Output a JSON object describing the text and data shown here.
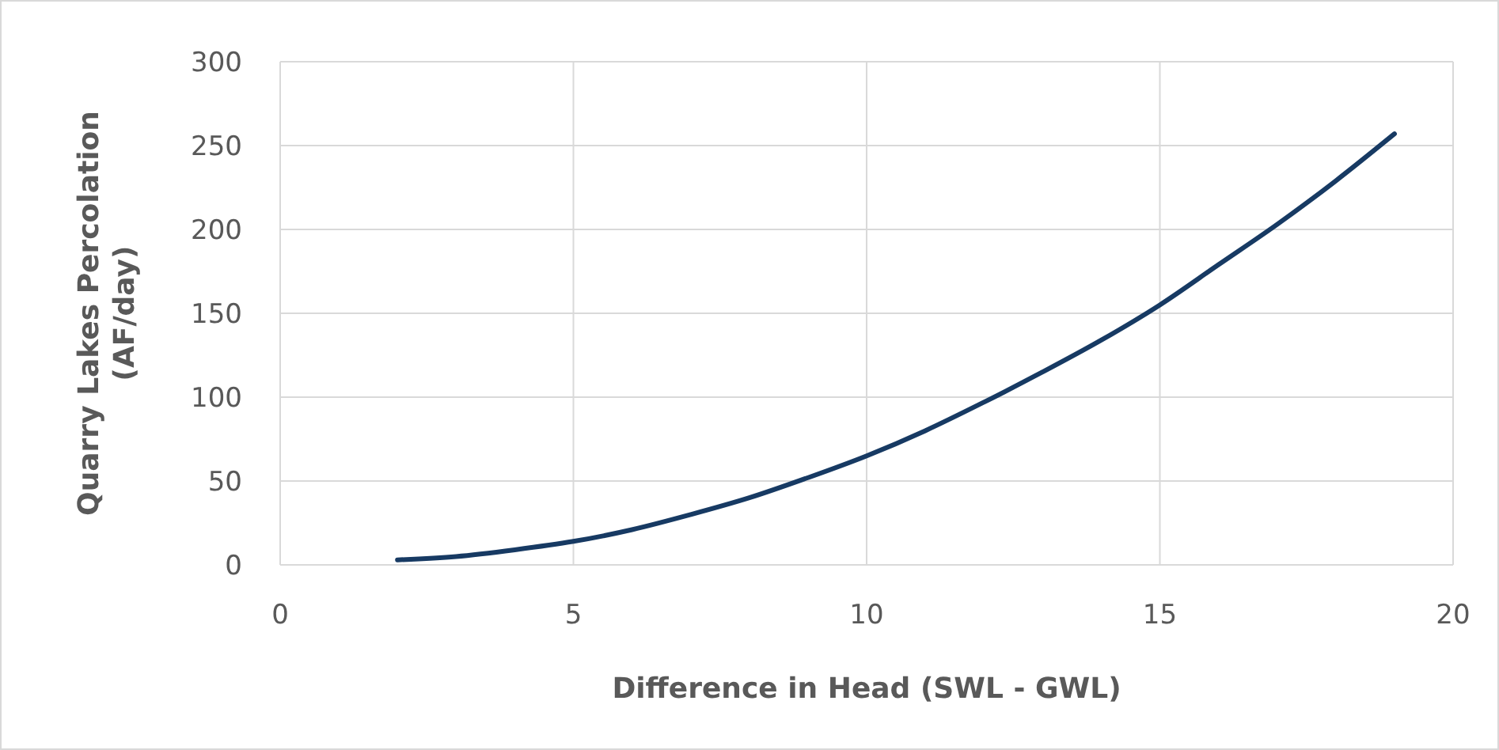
{
  "chart_data": {
    "type": "line",
    "xlabel": "Difference in Head (SWL - GWL)",
    "ylabel": "Quarry Lakes Percolation\n(AF/day)",
    "x": [
      2,
      3,
      4,
      5,
      6,
      7,
      8,
      9,
      10,
      11,
      12,
      13,
      14,
      15,
      16,
      17,
      18,
      19
    ],
    "series": [
      {
        "color": "#173a63",
        "values": [
          3,
          5,
          9,
          14,
          21,
          30,
          40,
          52,
          65,
          80,
          97,
          115,
          134,
          155,
          179,
          203,
          229,
          257
        ]
      }
    ],
    "xlim": [
      0,
      20
    ],
    "xticks": [
      0,
      5,
      10,
      15,
      20
    ],
    "ylim": [
      0,
      300
    ],
    "yticks": [
      0,
      50,
      100,
      150,
      200,
      250,
      300
    ],
    "grid": true,
    "marker": "none",
    "line_style": "solid"
  }
}
